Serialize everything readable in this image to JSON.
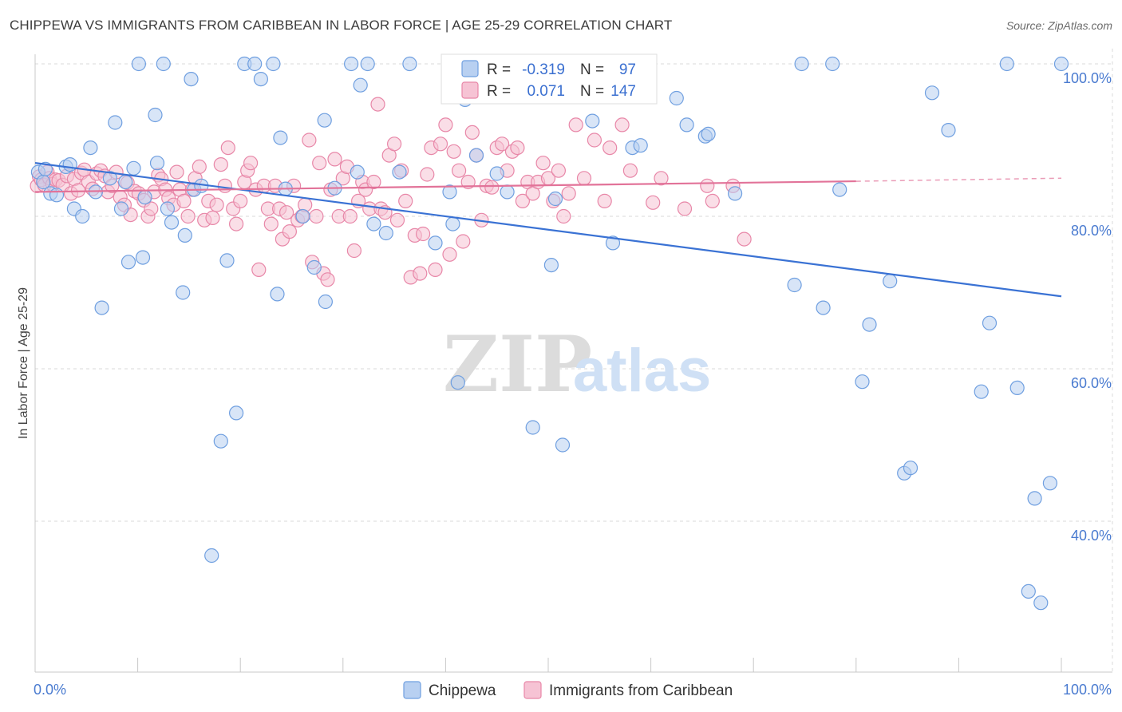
{
  "header": {
    "title": "CHIPPEWA VS IMMIGRANTS FROM CARIBBEAN IN LABOR FORCE | AGE 25-29 CORRELATION CHART",
    "source": "Source: ZipAtlas.com"
  },
  "watermark": {
    "zip": "ZIP",
    "atlas": "atlas"
  },
  "chart_data": {
    "type": "scatter",
    "ylabel": "In Labor Force | Age 25-29",
    "xlim": [
      0,
      100
    ],
    "ylim": [
      20,
      102
    ],
    "x_tick_labels": [
      {
        "value": 0,
        "label": "0.0%"
      },
      {
        "value": 100,
        "label": "100.0%"
      }
    ],
    "y_tick_labels": [
      {
        "value": 100,
        "label": "100.0%"
      },
      {
        "value": 80,
        "label": "80.0%"
      },
      {
        "value": 60,
        "label": "60.0%"
      },
      {
        "value": 40,
        "label": "40.0%"
      }
    ],
    "legend_top": [
      {
        "r_label": "R =",
        "r_value": "-0.319",
        "n_label": "N =",
        "n_value": "97"
      },
      {
        "r_label": "R =",
        "r_value": "0.071",
        "n_label": "N =",
        "n_value": "147"
      }
    ],
    "series": [
      {
        "name": "Chippewa",
        "color": "#6f9fe0",
        "fill": "#b8d0f1",
        "trend": {
          "x": [
            0,
            100
          ],
          "y": [
            87.0,
            69.5
          ]
        },
        "points": [
          [
            0.3,
            85.8
          ],
          [
            0.8,
            84.5
          ],
          [
            1.0,
            86.2
          ],
          [
            1.5,
            83.0
          ],
          [
            2.1,
            82.8
          ],
          [
            3.0,
            86.5
          ],
          [
            3.4,
            86.8
          ],
          [
            3.8,
            81.0
          ],
          [
            4.6,
            80.0
          ],
          [
            5.4,
            89.0
          ],
          [
            5.9,
            83.2
          ],
          [
            6.5,
            68.0
          ],
          [
            7.3,
            85.0
          ],
          [
            7.8,
            92.3
          ],
          [
            8.4,
            81.0
          ],
          [
            8.8,
            84.5
          ],
          [
            9.1,
            74.0
          ],
          [
            9.6,
            86.3
          ],
          [
            10.1,
            100.0
          ],
          [
            10.5,
            74.6
          ],
          [
            10.7,
            82.5
          ],
          [
            11.7,
            93.3
          ],
          [
            11.9,
            87.0
          ],
          [
            12.5,
            100.0
          ],
          [
            12.9,
            81.0
          ],
          [
            13.3,
            79.2
          ],
          [
            14.4,
            70.0
          ],
          [
            14.6,
            77.5
          ],
          [
            15.2,
            98.0
          ],
          [
            15.5,
            83.5
          ],
          [
            16.2,
            84.0
          ],
          [
            17.2,
            35.5
          ],
          [
            18.1,
            50.5
          ],
          [
            18.7,
            74.2
          ],
          [
            19.6,
            54.2
          ],
          [
            20.4,
            100.0
          ],
          [
            21.4,
            100.0
          ],
          [
            22.0,
            98.0
          ],
          [
            23.2,
            100.0
          ],
          [
            23.6,
            69.8
          ],
          [
            23.9,
            90.3
          ],
          [
            24.4,
            83.6
          ],
          [
            26.1,
            80.0
          ],
          [
            27.2,
            73.3
          ],
          [
            28.2,
            92.6
          ],
          [
            28.3,
            68.8
          ],
          [
            29.2,
            83.7
          ],
          [
            30.8,
            100.0
          ],
          [
            31.4,
            85.8
          ],
          [
            31.7,
            97.2
          ],
          [
            32.4,
            100.0
          ],
          [
            33.0,
            79.0
          ],
          [
            34.2,
            77.8
          ],
          [
            35.5,
            85.8
          ],
          [
            36.5,
            100.0
          ],
          [
            40.4,
            83.2
          ],
          [
            40.7,
            79.0
          ],
          [
            41.2,
            58.2
          ],
          [
            41.9,
            95.3
          ],
          [
            43.0,
            88.0
          ],
          [
            45.0,
            85.6
          ],
          [
            46.0,
            83.2
          ],
          [
            48.5,
            52.3
          ],
          [
            50.3,
            73.6
          ],
          [
            50.7,
            82.3
          ],
          [
            51.4,
            50.0
          ],
          [
            54.3,
            92.5
          ],
          [
            56.3,
            76.5
          ],
          [
            58.2,
            89.0
          ],
          [
            59.0,
            89.3
          ],
          [
            62.5,
            95.5
          ],
          [
            63.5,
            92.0
          ],
          [
            65.3,
            90.5
          ],
          [
            65.6,
            90.8
          ],
          [
            68.2,
            83.0
          ],
          [
            74.0,
            71.0
          ],
          [
            74.7,
            100.0
          ],
          [
            76.8,
            68.0
          ],
          [
            77.7,
            100.0
          ],
          [
            78.4,
            83.5
          ],
          [
            80.6,
            58.3
          ],
          [
            81.3,
            65.8
          ],
          [
            83.3,
            71.5
          ],
          [
            84.7,
            46.3
          ],
          [
            85.3,
            47.0
          ],
          [
            87.4,
            96.2
          ],
          [
            89.0,
            91.3
          ],
          [
            92.2,
            57.0
          ],
          [
            93.0,
            66.0
          ],
          [
            94.7,
            100.0
          ],
          [
            95.7,
            57.5
          ],
          [
            96.8,
            30.8
          ],
          [
            97.4,
            43.0
          ],
          [
            98.0,
            29.3
          ],
          [
            98.9,
            45.0
          ],
          [
            100.0,
            100.0
          ],
          [
            39.0,
            76.5
          ]
        ]
      },
      {
        "name": "Immigrants from Caribbean",
        "color": "#e887a8",
        "fill": "#f6c3d4",
        "trend": {
          "x": [
            0,
            80
          ],
          "y": [
            83.2,
            84.6
          ],
          "dash_to": [
            100,
            85.0
          ]
        },
        "points": [
          [
            0.2,
            84.0
          ],
          [
            0.4,
            85.2
          ],
          [
            0.6,
            84.8
          ],
          [
            0.9,
            84.1
          ],
          [
            1.2,
            85.8
          ],
          [
            1.4,
            85.0
          ],
          [
            1.7,
            84.2
          ],
          [
            2.0,
            84.8
          ],
          [
            2.3,
            84.7
          ],
          [
            2.7,
            84.1
          ],
          [
            3.1,
            85.3
          ],
          [
            3.5,
            83.0
          ],
          [
            3.8,
            84.9
          ],
          [
            4.2,
            83.4
          ],
          [
            4.5,
            85.7
          ],
          [
            4.8,
            86.1
          ],
          [
            5.2,
            84.5
          ],
          [
            5.6,
            83.6
          ],
          [
            6.0,
            85.6
          ],
          [
            6.4,
            86.0
          ],
          [
            6.8,
            85.3
          ],
          [
            7.1,
            83.2
          ],
          [
            7.5,
            84.0
          ],
          [
            7.9,
            85.8
          ],
          [
            8.3,
            82.5
          ],
          [
            8.7,
            81.5
          ],
          [
            9.0,
            84.4
          ],
          [
            9.3,
            80.2
          ],
          [
            9.7,
            83.3
          ],
          [
            10.1,
            83.0
          ],
          [
            10.6,
            82.1
          ],
          [
            11.0,
            80.0
          ],
          [
            11.3,
            81.0
          ],
          [
            11.6,
            83.2
          ],
          [
            12.0,
            85.4
          ],
          [
            12.3,
            84.9
          ],
          [
            12.7,
            83.5
          ],
          [
            13.0,
            82.4
          ],
          [
            13.5,
            81.5
          ],
          [
            13.8,
            85.8
          ],
          [
            14.1,
            83.5
          ],
          [
            14.5,
            82.0
          ],
          [
            14.9,
            80.0
          ],
          [
            15.3,
            83.5
          ],
          [
            15.6,
            85.0
          ],
          [
            16.0,
            86.5
          ],
          [
            16.5,
            79.5
          ],
          [
            16.9,
            82.0
          ],
          [
            17.3,
            79.8
          ],
          [
            17.7,
            81.5
          ],
          [
            18.1,
            86.8
          ],
          [
            18.5,
            84.0
          ],
          [
            18.8,
            89.0
          ],
          [
            19.3,
            81.0
          ],
          [
            19.6,
            79.0
          ],
          [
            20.0,
            82.0
          ],
          [
            20.4,
            84.5
          ],
          [
            20.7,
            86.0
          ],
          [
            21.0,
            87.0
          ],
          [
            21.5,
            83.5
          ],
          [
            21.8,
            73.0
          ],
          [
            22.3,
            84.0
          ],
          [
            22.7,
            81.0
          ],
          [
            23.0,
            79.0
          ],
          [
            23.4,
            84.0
          ],
          [
            23.8,
            81.0
          ],
          [
            24.1,
            77.0
          ],
          [
            24.5,
            80.5
          ],
          [
            24.8,
            78.0
          ],
          [
            25.2,
            84.0
          ],
          [
            25.6,
            79.5
          ],
          [
            26.0,
            80.0
          ],
          [
            26.3,
            81.5
          ],
          [
            26.7,
            90.0
          ],
          [
            27.0,
            74.0
          ],
          [
            27.4,
            80.0
          ],
          [
            27.7,
            87.0
          ],
          [
            28.1,
            72.5
          ],
          [
            28.5,
            71.7
          ],
          [
            28.8,
            83.5
          ],
          [
            29.2,
            87.5
          ],
          [
            29.6,
            80.0
          ],
          [
            30.0,
            85.0
          ],
          [
            30.4,
            86.5
          ],
          [
            30.7,
            80.0
          ],
          [
            31.1,
            75.5
          ],
          [
            31.5,
            82.0
          ],
          [
            31.9,
            84.5
          ],
          [
            32.2,
            83.5
          ],
          [
            32.6,
            81.0
          ],
          [
            33.0,
            84.5
          ],
          [
            33.4,
            94.7
          ],
          [
            33.7,
            81.0
          ],
          [
            34.1,
            80.5
          ],
          [
            34.5,
            88.0
          ],
          [
            35.0,
            89.5
          ],
          [
            35.3,
            79.5
          ],
          [
            35.7,
            86.0
          ],
          [
            36.1,
            82.0
          ],
          [
            36.6,
            72.0
          ],
          [
            37.0,
            77.5
          ],
          [
            37.5,
            72.5
          ],
          [
            37.8,
            77.7
          ],
          [
            38.2,
            85.5
          ],
          [
            38.6,
            89.0
          ],
          [
            39.0,
            73.0
          ],
          [
            39.5,
            89.5
          ],
          [
            40.0,
            92.0
          ],
          [
            40.4,
            75.0
          ],
          [
            40.8,
            88.5
          ],
          [
            41.3,
            86.0
          ],
          [
            41.7,
            76.7
          ],
          [
            42.2,
            84.5
          ],
          [
            42.6,
            91.0
          ],
          [
            43.0,
            88.0
          ],
          [
            43.5,
            79.5
          ],
          [
            44.0,
            84.0
          ],
          [
            44.5,
            83.8
          ],
          [
            45.0,
            89.0
          ],
          [
            45.5,
            89.5
          ],
          [
            46.0,
            86.0
          ],
          [
            46.5,
            88.5
          ],
          [
            47.0,
            89.0
          ],
          [
            47.5,
            82.0
          ],
          [
            48.0,
            84.5
          ],
          [
            48.5,
            83.0
          ],
          [
            49.0,
            84.5
          ],
          [
            49.5,
            87.0
          ],
          [
            50.0,
            85.0
          ],
          [
            50.5,
            82.0
          ],
          [
            51.0,
            86.0
          ],
          [
            51.5,
            80.0
          ],
          [
            52.0,
            83.0
          ],
          [
            52.7,
            92.0
          ],
          [
            53.5,
            85.0
          ],
          [
            54.5,
            90.0
          ],
          [
            55.5,
            82.0
          ],
          [
            56.0,
            89.0
          ],
          [
            57.2,
            92.0
          ],
          [
            58.0,
            86.0
          ],
          [
            60.2,
            81.8
          ],
          [
            61.0,
            85.0
          ],
          [
            63.3,
            81.0
          ],
          [
            66.0,
            82.0
          ],
          [
            68.0,
            84.0
          ],
          [
            65.5,
            84.0
          ],
          [
            69.1,
            77.0
          ]
        ]
      }
    ]
  },
  "legend_bottom": [
    {
      "label": "Chippewa",
      "color": "#6f9fe0",
      "fill": "#b8d0f1"
    },
    {
      "label": "Immigrants from Caribbean",
      "color": "#e887a8",
      "fill": "#f6c3d4"
    }
  ],
  "colors": {
    "blue_line": "#3a72d4",
    "pink_line": "#e27399",
    "grid": "#d9d9d9",
    "axis": "#c8c8c8"
  }
}
